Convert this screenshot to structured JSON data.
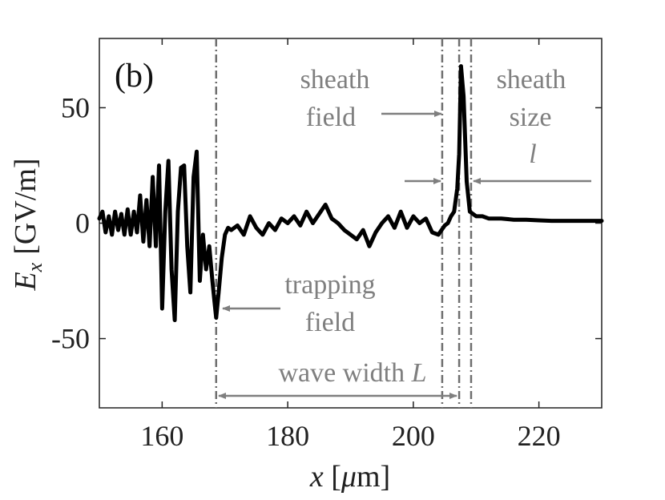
{
  "chart_data": {
    "type": "line",
    "panel_label": "(b)",
    "xlabel": {
      "var": "x",
      "open": "[",
      "unit_mu": "μ",
      "unit": "m]"
    },
    "ylabel": {
      "var": "E",
      "sub": "x",
      "unit": "[GV/m]"
    },
    "xlim": [
      150,
      230
    ],
    "ylim": [
      -80,
      80
    ],
    "xticks": [
      160,
      180,
      200,
      220
    ],
    "yticks": [
      50,
      0,
      -50
    ],
    "ytick_labels": [
      "50",
      "0",
      "-50"
    ],
    "series": [
      {
        "name": "Ex",
        "color": "#000000",
        "x": [
          150,
          150.5,
          151,
          151.5,
          152,
          152.5,
          153,
          153.5,
          154,
          154.5,
          155,
          155.5,
          156,
          156.5,
          157,
          157.5,
          158,
          158.5,
          159,
          159.5,
          160,
          160.5,
          161,
          161.5,
          162,
          162.5,
          163,
          163.5,
          164,
          164.5,
          165,
          165.5,
          166,
          166.5,
          167,
          167.5,
          168,
          168.3,
          168.6,
          169,
          169.5,
          170,
          170.5,
          171,
          172,
          173,
          174,
          175,
          176,
          177,
          178,
          179,
          180,
          181,
          182,
          183,
          184,
          185,
          186,
          187,
          188,
          189,
          190,
          191,
          192,
          193,
          194,
          195,
          196,
          197,
          198,
          199,
          200,
          201,
          202,
          203,
          204,
          204.5,
          205,
          205.5,
          206,
          206.5,
          207,
          207.3,
          207.6,
          208,
          208.5,
          209,
          210,
          211,
          212,
          214,
          216,
          218,
          220,
          222,
          225,
          230
        ],
        "y": [
          2,
          5,
          -4,
          3,
          -5,
          5,
          -3,
          4,
          -5,
          6,
          -5,
          5,
          -4,
          12,
          -8,
          10,
          -10,
          20,
          -10,
          25,
          -37,
          5,
          27,
          -20,
          -42,
          5,
          24,
          25,
          -10,
          -30,
          20,
          31,
          -25,
          -5,
          -20,
          -10,
          -25,
          -33,
          -41,
          -30,
          -15,
          -5,
          -2,
          -3,
          -1,
          -5,
          3,
          -2,
          -5,
          0,
          -3,
          2,
          0,
          3,
          -1,
          5,
          0,
          4,
          8,
          2,
          0,
          -3,
          -5,
          -7,
          -3,
          -10,
          -4,
          0,
          3,
          -2,
          5,
          -2,
          3,
          0,
          2,
          -4,
          -5,
          -3,
          -1,
          0,
          3,
          5,
          15,
          30,
          68,
          55,
          18,
          5,
          3,
          3,
          2,
          2,
          1.5,
          1.5,
          1.2,
          1,
          1,
          1
        ]
      }
    ],
    "vlines": [
      168.6,
      204.6,
      207.3,
      209.2
    ],
    "annotations": {
      "sheath_field": [
        "sheath",
        "field"
      ],
      "sheath_size": [
        "sheath",
        "size",
        "l"
      ],
      "trapping_field": [
        "trapping",
        "field"
      ],
      "wave_width": [
        "wave width",
        "L"
      ]
    },
    "annotation_color": "#7f7f7f"
  }
}
